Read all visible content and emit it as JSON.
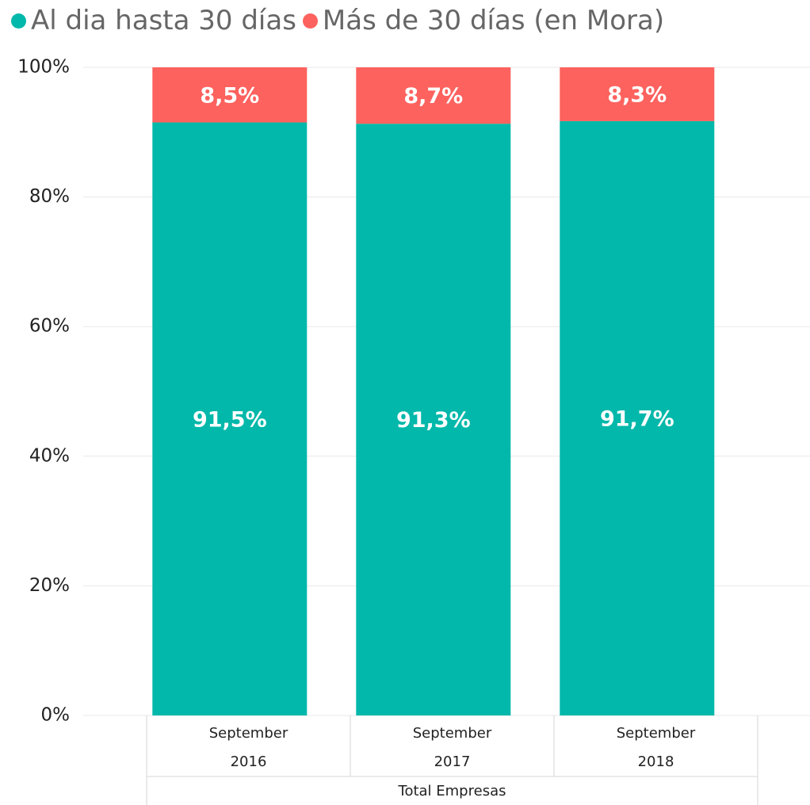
{
  "chart_data": {
    "type": "stacked_bar_100",
    "categories": [
      "September 2016",
      "September 2017",
      "September 2018"
    ],
    "group_label": "Total Empresas",
    "series": [
      {
        "name": "Al dia hasta 30 días",
        "color": "#01b8aa",
        "values": [
          91.5,
          91.3,
          91.7
        ],
        "value_labels": [
          "91,5%",
          "91,3%",
          "91,7%"
        ]
      },
      {
        "name": "Más de 30 días (en Mora)",
        "color": "#fd625e",
        "values": [
          8.5,
          8.7,
          8.3
        ],
        "value_labels": [
          "8,5%",
          "8,7%",
          "8,3%"
        ]
      }
    ],
    "ylim": [
      0,
      100
    ],
    "yticks": [
      {
        "value": 0,
        "label": "0%"
      },
      {
        "value": 20,
        "label": "20%"
      },
      {
        "value": 40,
        "label": "40%"
      },
      {
        "value": 60,
        "label": "60%"
      },
      {
        "value": 80,
        "label": "80%"
      },
      {
        "value": 100,
        "label": "100%"
      }
    ],
    "grid": true,
    "legend": "top-left"
  }
}
